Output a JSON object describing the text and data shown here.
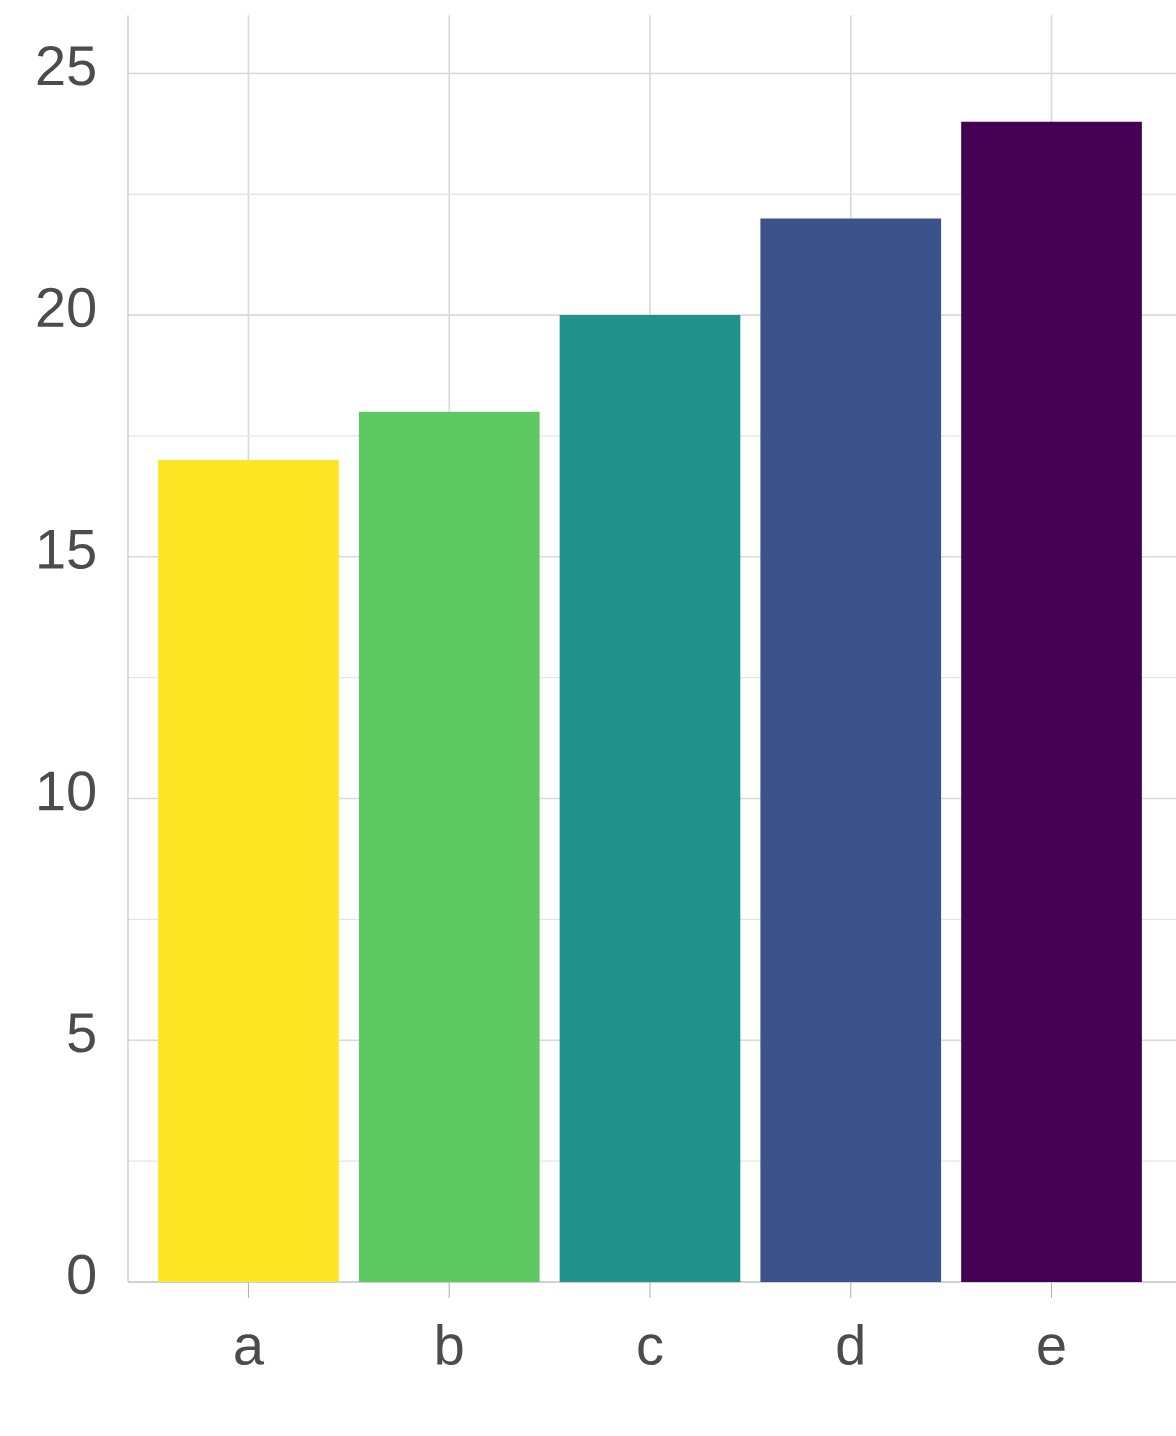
{
  "chart_data": {
    "type": "bar",
    "categories": [
      "a",
      "b",
      "c",
      "d",
      "e"
    ],
    "values": [
      17,
      18,
      20,
      22,
      24
    ],
    "colors": [
      "#fde725",
      "#5ec962",
      "#21918c",
      "#3b528b",
      "#440154"
    ],
    "ylim": [
      0,
      26.2
    ],
    "yticks": [
      0,
      5,
      10,
      15,
      20,
      25
    ],
    "grid": true
  }
}
